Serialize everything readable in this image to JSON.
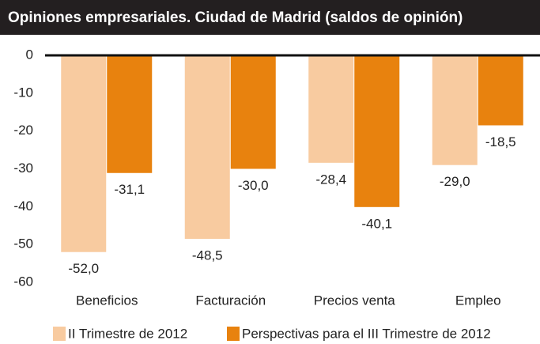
{
  "chart_data": {
    "type": "bar",
    "title": "Opiniones empresariales. Ciudad de Madrid  (saldos de opinión)",
    "categories": [
      "Beneficios",
      "Facturación",
      "Precios venta",
      "Empleo"
    ],
    "series": [
      {
        "name": "II Trimestre de 2012",
        "color": "#f8cba0",
        "values": [
          -52.0,
          -48.5,
          -28.4,
          -29.0
        ],
        "value_labels": [
          "-52,0",
          "-48,5",
          "-28,4",
          "-29,0"
        ]
      },
      {
        "name": "Perspectivas para el III Trimestre de 2012",
        "color": "#e8820e",
        "values": [
          -31.1,
          -30.0,
          -40.1,
          -18.5
        ],
        "value_labels": [
          "-31,1",
          "-30,0",
          "-40,1",
          "-18,5"
        ]
      }
    ],
    "ylim": [
      -60,
      0
    ],
    "yticks": [
      0,
      -10,
      -20,
      -30,
      -40,
      -50,
      -60
    ],
    "grid": false
  }
}
